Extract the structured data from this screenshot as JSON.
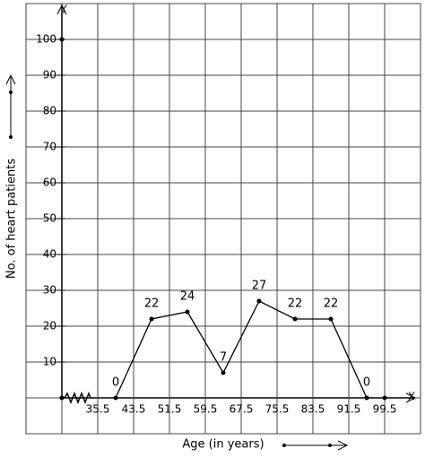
{
  "chart_data": {
    "type": "line",
    "y_axis_name": "Y",
    "x_axis_name": "X",
    "x_label": "Age (in years)",
    "y_label": "No. of heart patients",
    "x": [
      39.5,
      47.5,
      55.5,
      63.5,
      71.5,
      79.5,
      87.5,
      95.5
    ],
    "series": [
      {
        "color": "#000000",
        "values": [
          0,
          22,
          24,
          7,
          27,
          22,
          22,
          0
        ]
      }
    ],
    "xlim": [
      27.5,
      107.5
    ],
    "xticks": [
      35.5,
      43.5,
      51.5,
      59.5,
      67.5,
      75.5,
      83.5,
      91.5,
      99.5
    ],
    "ylim": [
      0,
      110
    ],
    "yticks": [
      10,
      20,
      30,
      40,
      50,
      60,
      70,
      80,
      90,
      100
    ],
    "grid": true
  }
}
